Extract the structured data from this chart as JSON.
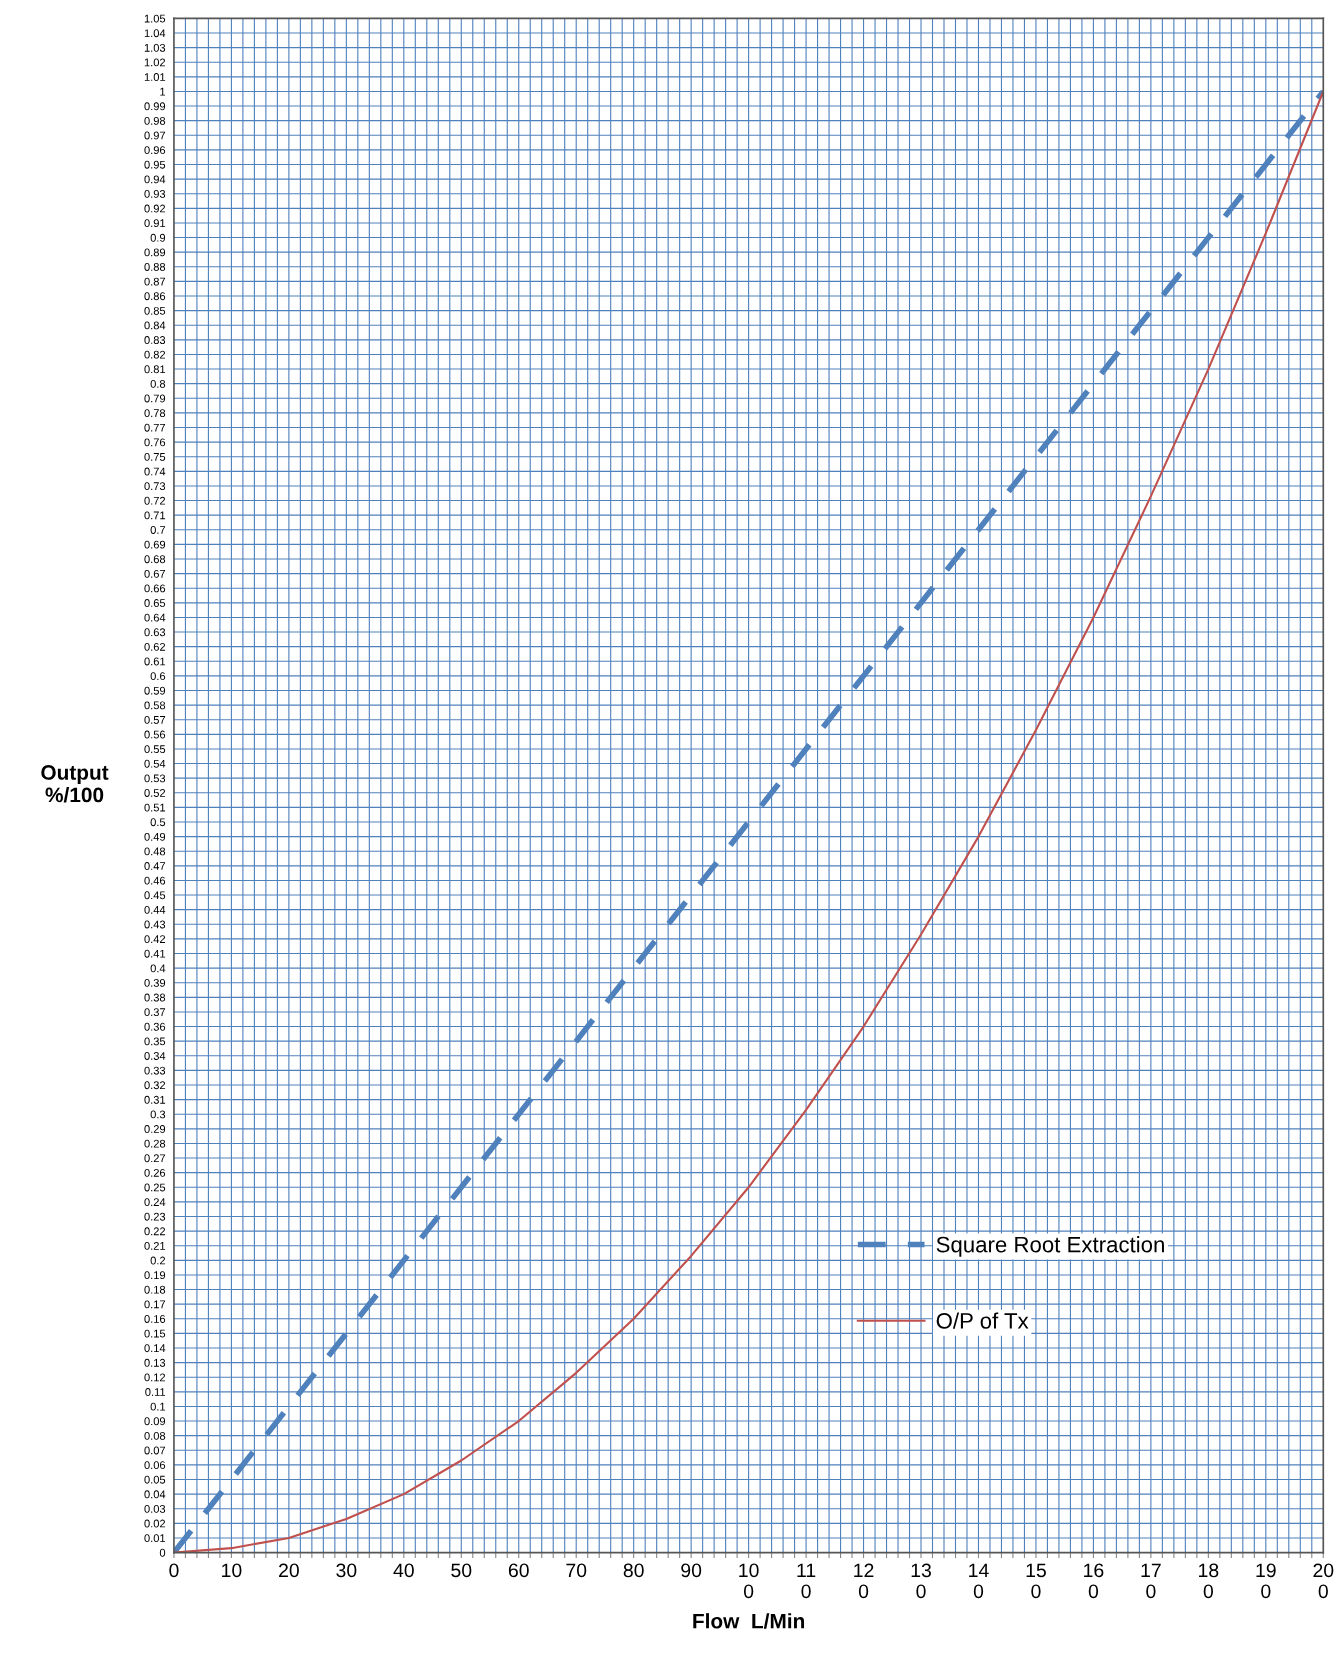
{
  "chart_data": {
    "type": "line",
    "xlabel": "Flow  L/Min",
    "ylabel": "Output\n%/100",
    "x": [
      0,
      50,
      100,
      150,
      200
    ],
    "series": [
      {
        "name": "Square Root Extraction",
        "color": "#4f81bd",
        "line_style": "dashed",
        "values": [
          0,
          0.25,
          0.5,
          0.75,
          1
        ]
      },
      {
        "name": "O/P of Tx",
        "color": "#c0504d",
        "line_style": "solid",
        "x": [
          0,
          10,
          20,
          30,
          40,
          50,
          60,
          70,
          80,
          90,
          100,
          110,
          120,
          130,
          140,
          150,
          160,
          170,
          180,
          190,
          200
        ],
        "values": [
          0,
          0.003,
          0.01,
          0.023,
          0.04,
          0.063,
          0.09,
          0.123,
          0.16,
          0.203,
          0.25,
          0.303,
          0.36,
          0.423,
          0.49,
          0.563,
          0.64,
          0.723,
          0.81,
          0.903,
          1
        ]
      }
    ],
    "xlim": [
      0,
      200
    ],
    "ylim": [
      0,
      1.05
    ],
    "xticks": [
      0,
      {
        "value": 2,
        "label": null
      },
      {
        "value": 4,
        "label": null
      },
      {
        "value": 6,
        "label": null
      },
      {
        "value": 8,
        "label": null
      },
      10,
      {
        "value": 12,
        "label": null
      },
      {
        "value": 14,
        "label": null
      },
      {
        "value": 16,
        "label": null
      },
      {
        "value": 18,
        "label": null
      },
      20,
      {
        "value": 22,
        "label": null
      },
      {
        "value": 24,
        "label": null
      },
      {
        "value": 26,
        "label": null
      },
      {
        "value": 28,
        "label": null
      },
      30,
      {
        "value": 32,
        "label": null
      },
      {
        "value": 34,
        "label": null
      },
      {
        "value": 36,
        "label": null
      },
      {
        "value": 38,
        "label": null
      },
      40,
      {
        "value": 42,
        "label": null
      },
      {
        "value": 44,
        "label": null
      },
      {
        "value": 46,
        "label": null
      },
      {
        "value": 48,
        "label": null
      },
      50,
      {
        "value": 52,
        "label": null
      },
      {
        "value": 54,
        "label": null
      },
      {
        "value": 56,
        "label": null
      },
      {
        "value": 58,
        "label": null
      },
      60,
      {
        "value": 62,
        "label": null
      },
      {
        "value": 64,
        "label": null
      },
      {
        "value": 66,
        "label": null
      },
      {
        "value": 68,
        "label": null
      },
      70,
      {
        "value": 72,
        "label": null
      },
      {
        "value": 74,
        "label": null
      },
      {
        "value": 76,
        "label": null
      },
      {
        "value": 78,
        "label": null
      },
      80,
      {
        "value": 82,
        "label": null
      },
      {
        "value": 84,
        "label": null
      },
      {
        "value": 86,
        "label": null
      },
      {
        "value": 88,
        "label": null
      },
      90,
      {
        "value": 92,
        "label": null
      },
      {
        "value": 94,
        "label": null
      },
      {
        "value": 96,
        "label": null
      },
      {
        "value": 98,
        "label": null
      },
      {
        "value": 100,
        "label": "10\n0"
      },
      {
        "value": 102,
        "label": null
      },
      {
        "value": 104,
        "label": null
      },
      {
        "value": 106,
        "label": null
      },
      {
        "value": 108,
        "label": null
      },
      {
        "value": 110,
        "label": "11\n0"
      },
      {
        "value": 112,
        "label": null
      },
      {
        "value": 114,
        "label": null
      },
      {
        "value": 116,
        "label": null
      },
      {
        "value": 118,
        "label": null
      },
      {
        "value": 120,
        "label": "12\n0"
      },
      {
        "value": 122,
        "label": null
      },
      {
        "value": 124,
        "label": null
      },
      {
        "value": 126,
        "label": null
      },
      {
        "value": 128,
        "label": null
      },
      {
        "value": 130,
        "label": "13\n0"
      },
      {
        "value": 132,
        "label": null
      },
      {
        "value": 134,
        "label": null
      },
      {
        "value": 136,
        "label": null
      },
      {
        "value": 138,
        "label": null
      },
      {
        "value": 140,
        "label": "14\n0"
      },
      {
        "value": 142,
        "label": null
      },
      {
        "value": 144,
        "label": null
      },
      {
        "value": 146,
        "label": null
      },
      {
        "value": 148,
        "label": null
      },
      {
        "value": 150,
        "label": "15\n0"
      },
      {
        "value": 152,
        "label": null
      },
      {
        "value": 154,
        "label": null
      },
      {
        "value": 156,
        "label": null
      },
      {
        "value": 158,
        "label": null
      },
      {
        "value": 160,
        "label": "16\n0"
      },
      {
        "value": 162,
        "label": null
      },
      {
        "value": 164,
        "label": null
      },
      {
        "value": 166,
        "label": null
      },
      {
        "value": 168,
        "label": null
      },
      {
        "value": 170,
        "label": "17\n0"
      },
      {
        "value": 172,
        "label": null
      },
      {
        "value": 174,
        "label": null
      },
      {
        "value": 176,
        "label": null
      },
      {
        "value": 178,
        "label": null
      },
      {
        "value": 180,
        "label": "18\n0"
      },
      {
        "value": 182,
        "label": null
      },
      {
        "value": 184,
        "label": null
      },
      {
        "value": 186,
        "label": null
      },
      {
        "value": 188,
        "label": null
      },
      {
        "value": 190,
        "label": "19\n0"
      },
      {
        "value": 192,
        "label": null
      },
      {
        "value": 194,
        "label": null
      },
      {
        "value": 196,
        "label": null
      },
      {
        "value": 198,
        "label": null
      },
      {
        "value": 200,
        "label": "20\n0"
      }
    ],
    "yticks": [
      0,
      0.01,
      0.02,
      0.03,
      0.04,
      0.05,
      0.06,
      0.07,
      0.08,
      0.09,
      0.1,
      0.11,
      0.12,
      0.13,
      0.14,
      0.15,
      0.16,
      0.17,
      0.18,
      0.19,
      0.2,
      0.21,
      0.22,
      0.23,
      0.24,
      0.25,
      0.26,
      0.27,
      0.28,
      0.29,
      0.3,
      0.31,
      0.32,
      0.33,
      0.34,
      0.35,
      0.36,
      0.37,
      0.38,
      0.39,
      0.4,
      0.41,
      0.42,
      0.43,
      0.44,
      0.45,
      0.46,
      0.47,
      0.48,
      0.49,
      0.5,
      0.51,
      0.52,
      0.53,
      0.54,
      0.55,
      0.56,
      0.57,
      0.58,
      0.59,
      0.6,
      0.61,
      0.62,
      0.63,
      0.64,
      0.65,
      0.66,
      0.67,
      0.68,
      0.69,
      0.7,
      0.71,
      0.72,
      0.73,
      0.74,
      0.75,
      0.76,
      0.77,
      0.78,
      0.79,
      0.8,
      0.81,
      0.82,
      0.83,
      0.84,
      0.85,
      0.86,
      0.87,
      0.88,
      0.89,
      0.9,
      0.91,
      0.92,
      0.93,
      0.94,
      0.95,
      0.96,
      0.97,
      0.98,
      0.99,
      1,
      1.01,
      1.02,
      1.03,
      1.04,
      1.05
    ],
    "grid": true,
    "legend": "bottom right",
    "marker": "none"
  }
}
